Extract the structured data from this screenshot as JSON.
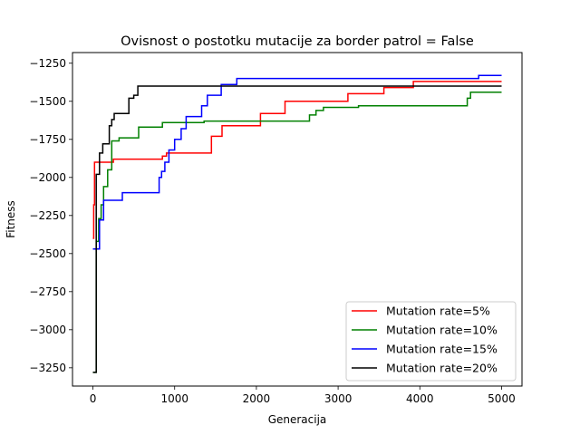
{
  "chart_data": {
    "type": "line",
    "title": "Ovisnost o postotku mutacije za border patrol = False",
    "xlabel": "Generacija",
    "ylabel": "Fitness",
    "xlim": [
      -250,
      5250
    ],
    "ylim": [
      -3370,
      -1180
    ],
    "xticks": [
      0,
      1000,
      2000,
      3000,
      4000,
      5000
    ],
    "yticks": [
      -1250,
      -1500,
      -1750,
      -2000,
      -2250,
      -2500,
      -2750,
      -3000,
      -3250
    ],
    "xtick_labels": [
      "0",
      "1000",
      "2000",
      "3000",
      "4000",
      "5000"
    ],
    "ytick_labels": [
      "−1250",
      "−1500",
      "−1750",
      "−2000",
      "−2250",
      "−2500",
      "−2750",
      "−3000",
      "−3250"
    ],
    "grid": false,
    "legend_position": "lower-right",
    "series": [
      {
        "name": "Mutation rate=5%",
        "color": "#ff0000",
        "x": [
          0,
          10,
          10,
          20,
          20,
          30,
          30,
          250,
          250,
          850,
          850,
          900,
          900,
          1450,
          1450,
          1580,
          1580,
          2050,
          2050,
          2350,
          2350,
          3120,
          3120,
          3560,
          3560,
          3920,
          3920,
          5000
        ],
        "y": [
          -2400,
          -2400,
          -2180,
          -2180,
          -1900,
          -1900,
          -1900,
          -1900,
          -1880,
          -1880,
          -1860,
          -1860,
          -1840,
          -1840,
          -1730,
          -1730,
          -1660,
          -1660,
          -1580,
          -1580,
          -1500,
          -1500,
          -1450,
          -1450,
          -1410,
          -1410,
          -1370,
          -1370
        ]
      },
      {
        "name": "Mutation rate=10%",
        "color": "#008000",
        "x": [
          0,
          40,
          40,
          70,
          70,
          100,
          100,
          130,
          130,
          180,
          180,
          230,
          230,
          320,
          320,
          560,
          560,
          850,
          850,
          1360,
          1360,
          1620,
          1620,
          2650,
          2650,
          2730,
          2730,
          2820,
          2820,
          3250,
          3250,
          4580,
          4580,
          4620,
          4620,
          5000
        ],
        "y": [
          -3280,
          -3280,
          -2420,
          -2420,
          -2270,
          -2270,
          -2180,
          -2180,
          -2060,
          -2060,
          -1950,
          -1950,
          -1760,
          -1760,
          -1740,
          -1740,
          -1670,
          -1670,
          -1640,
          -1640,
          -1630,
          -1630,
          -1630,
          -1630,
          -1590,
          -1590,
          -1560,
          -1560,
          -1540,
          -1540,
          -1530,
          -1530,
          -1480,
          -1480,
          -1440,
          -1440
        ]
      },
      {
        "name": "Mutation rate=15%",
        "color": "#0000ff",
        "x": [
          0,
          80,
          80,
          130,
          130,
          360,
          360,
          810,
          810,
          840,
          840,
          880,
          880,
          930,
          930,
          1000,
          1000,
          1080,
          1080,
          1140,
          1140,
          1330,
          1330,
          1400,
          1400,
          1570,
          1570,
          1760,
          1760,
          4720,
          4720,
          5000
        ],
        "y": [
          -2470,
          -2470,
          -2280,
          -2280,
          -2150,
          -2150,
          -2100,
          -2100,
          -2000,
          -2000,
          -1960,
          -1960,
          -1900,
          -1900,
          -1820,
          -1820,
          -1750,
          -1750,
          -1680,
          -1680,
          -1600,
          -1600,
          -1530,
          -1530,
          -1460,
          -1460,
          -1390,
          -1390,
          -1350,
          -1350,
          -1330,
          -1330
        ]
      },
      {
        "name": "Mutation rate=20%",
        "color": "#000000",
        "x": [
          0,
          40,
          40,
          80,
          80,
          120,
          120,
          200,
          200,
          230,
          230,
          260,
          260,
          440,
          440,
          500,
          500,
          550,
          550,
          5000
        ],
        "y": [
          -3280,
          -3280,
          -1980,
          -1980,
          -1840,
          -1840,
          -1780,
          -1780,
          -1660,
          -1660,
          -1620,
          -1620,
          -1580,
          -1580,
          -1480,
          -1480,
          -1460,
          -1460,
          -1400,
          -1400
        ]
      }
    ]
  }
}
